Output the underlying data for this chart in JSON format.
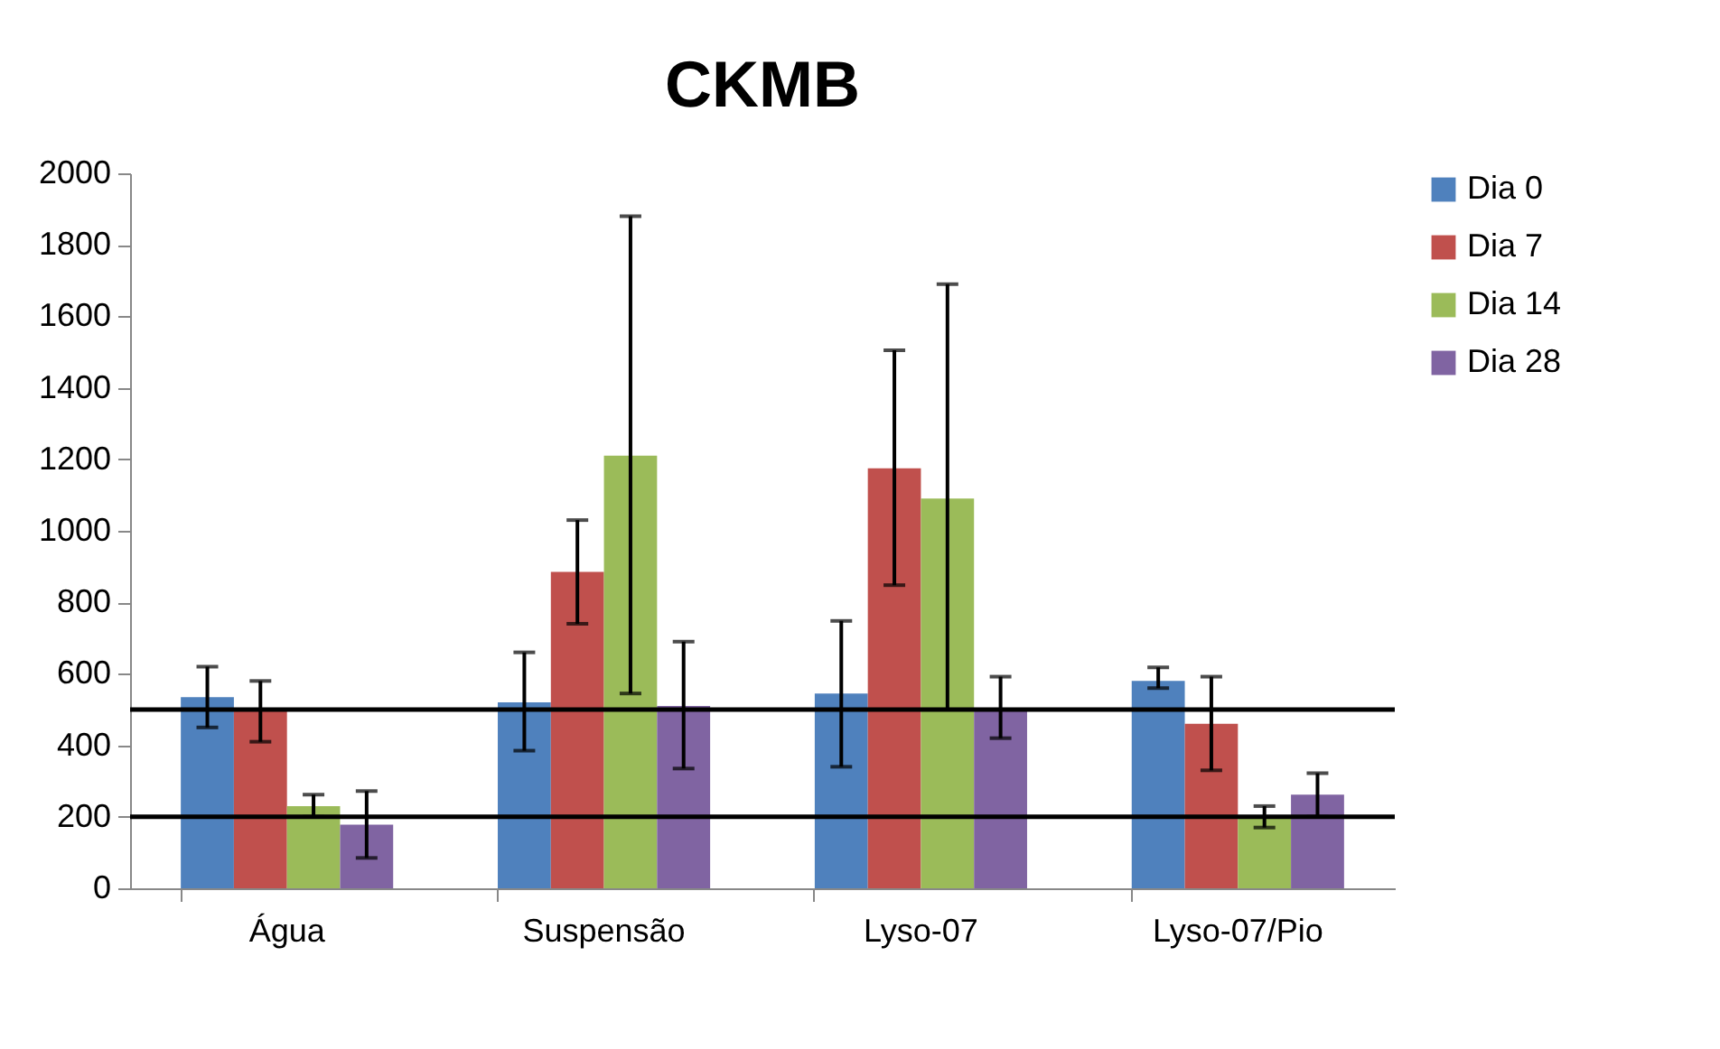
{
  "chart_data": {
    "type": "bar",
    "title": "CKMB",
    "categories": [
      "Água",
      "Suspensão",
      "Lyso-07",
      "Lyso-07/Pio"
    ],
    "series": [
      {
        "name": "Dia 0",
        "color": "#4f81bd",
        "values": [
          535,
          520,
          545,
          580
        ],
        "errors": [
          [
            450,
            620
          ],
          [
            385,
            660
          ],
          [
            340,
            748
          ],
          [
            560,
            618
          ]
        ]
      },
      {
        "name": "Dia 7",
        "color": "#c0504d",
        "values": [
          500,
          885,
          1175,
          460
        ],
        "errors": [
          [
            410,
            580
          ],
          [
            740,
            1030
          ],
          [
            848,
            1505
          ],
          [
            330,
            592
          ]
        ]
      },
      {
        "name": "Dia 14",
        "color": "#9bbb59",
        "values": [
          230,
          1210,
          1090,
          200
        ],
        "errors": [
          [
            200,
            262
          ],
          [
            545,
            1880
          ],
          [
            500,
            1690
          ],
          [
            170,
            230
          ]
        ]
      },
      {
        "name": "Dia 28",
        "color": "#8064a2",
        "values": [
          178,
          510,
          505,
          262
        ],
        "errors": [
          [
            85,
            272
          ],
          [
            335,
            690
          ],
          [
            420,
            592
          ],
          [
            200,
            322
          ]
        ]
      }
    ],
    "ylim": [
      0,
      2000
    ],
    "yticks": [
      0,
      200,
      400,
      600,
      800,
      1000,
      1200,
      1400,
      1600,
      1800,
      2000
    ],
    "ref_lines": [
      {
        "axis": "y",
        "value": 500,
        "color": "#000000"
      },
      {
        "axis": "y",
        "value": 200,
        "color": "#000000"
      }
    ],
    "grid": false,
    "legend": "right"
  }
}
